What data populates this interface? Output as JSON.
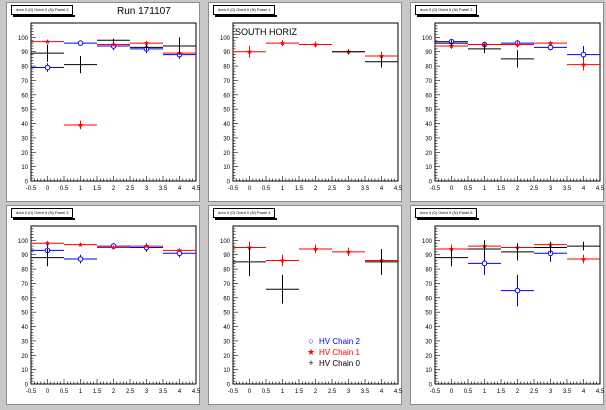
{
  "colors": {
    "hv_chain_2": "#0000ff",
    "hv_chain_1": "#ff0000",
    "hv_chain_0": "#000000",
    "canvas_bg": "#c8c8c8"
  },
  "run_label": "Run 171107",
  "annotation": "SOUTH HORIZ",
  "legend_panel_index": 4,
  "legend": [
    {
      "name": "HV Chain 2",
      "marker": "open-circle",
      "color": "#0000ff"
    },
    {
      "name": "HV Chain 1",
      "marker": "star",
      "color": "#ff0000"
    },
    {
      "name": "HV Chain 0",
      "marker": "cross",
      "color": "#000000"
    }
  ],
  "chart_data": [
    {
      "type": "scatter",
      "title": "dom 0 (0) Octnt 0 (N) Panel 0",
      "xlim": [
        -0.5,
        4.5
      ],
      "ylim": [
        0,
        110
      ],
      "xticks": [
        "-0.5",
        "0",
        "0.5",
        "1",
        "1.5",
        "2",
        "2.5",
        "3",
        "3.5",
        "4",
        "4.5"
      ],
      "yticks": [
        "0",
        "10",
        "20",
        "30",
        "40",
        "50",
        "60",
        "70",
        "80",
        "90",
        "100"
      ],
      "series": [
        {
          "name": "HV Chain 2",
          "x": [
            0,
            1,
            2,
            3,
            4
          ],
          "y": [
            79,
            96,
            94,
            92,
            88
          ],
          "xerr": 0.5,
          "yerr": [
            3,
            1,
            3,
            3,
            3
          ]
        },
        {
          "name": "HV Chain 1",
          "x": [
            0,
            1,
            2,
            3,
            4
          ],
          "y": [
            97,
            39,
            95,
            96,
            89
          ],
          "xerr": 0.5,
          "yerr": [
            1,
            3,
            1,
            1,
            1
          ]
        },
        {
          "name": "HV Chain 0",
          "x": [
            0,
            1,
            2,
            3,
            4
          ],
          "y": [
            89,
            81,
            98,
            93,
            94
          ],
          "xerr": 0.5,
          "yerr": [
            6,
            6,
            1,
            2,
            6
          ]
        }
      ]
    },
    {
      "type": "scatter",
      "title": "dom 0 (0) Octnt 0 (N) Panel 1",
      "xlim": [
        -0.5,
        4.5
      ],
      "ylim": [
        0,
        110
      ],
      "xticks": [
        "-0.5",
        "0",
        "0.5",
        "1",
        "1.5",
        "2",
        "2.5",
        "3",
        "3.5",
        "4",
        "4.5"
      ],
      "yticks": [
        "0",
        "10",
        "20",
        "30",
        "40",
        "50",
        "60",
        "70",
        "80",
        "90",
        "100"
      ],
      "series": [
        {
          "name": "HV Chain 1",
          "x": [
            0,
            1,
            2,
            3,
            4
          ],
          "y": [
            90,
            96,
            95,
            90,
            87
          ],
          "xerr": 0.5,
          "yerr": [
            4,
            2,
            2,
            2,
            3
          ]
        },
        {
          "name": "HV Chain 0",
          "x": [
            3,
            4
          ],
          "y": [
            90,
            83
          ],
          "xerr": 0.5,
          "yerr": [
            1,
            4
          ]
        }
      ]
    },
    {
      "type": "scatter",
      "title": "dom 0 (0) Octnt 0 (N) Panel 2",
      "xlim": [
        -0.5,
        4.5
      ],
      "ylim": [
        0,
        110
      ],
      "xticks": [
        "-0.5",
        "0",
        "0.5",
        "1",
        "1.5",
        "2",
        "2.5",
        "3",
        "3.5",
        "4",
        "4.5"
      ],
      "yticks": [
        "0",
        "10",
        "20",
        "30",
        "40",
        "50",
        "60",
        "70",
        "80",
        "90",
        "100"
      ],
      "series": [
        {
          "name": "HV Chain 2",
          "x": [
            0,
            1,
            2,
            3,
            4
          ],
          "y": [
            97,
            95,
            96,
            93,
            88
          ],
          "xerr": 0.5,
          "yerr": [
            1,
            2,
            2,
            2,
            6
          ]
        },
        {
          "name": "HV Chain 1",
          "x": [
            0,
            1,
            2,
            3,
            4
          ],
          "y": [
            94,
            95,
            95,
            96,
            81
          ],
          "xerr": 0.5,
          "yerr": [
            2,
            2,
            2,
            1,
            4
          ]
        },
        {
          "name": "HV Chain 0",
          "x": [
            0,
            1,
            2
          ],
          "y": [
            96,
            92,
            85
          ],
          "xerr": 0.5,
          "yerr": [
            2,
            3,
            6
          ]
        }
      ]
    },
    {
      "type": "scatter",
      "title": "dom 0 (0) Octnt 0 (N) Panel 3",
      "xlim": [
        -0.5,
        4.5
      ],
      "ylim": [
        0,
        110
      ],
      "xticks": [
        "-0.5",
        "0",
        "0.5",
        "1",
        "1.5",
        "2",
        "2.5",
        "3",
        "3.5",
        "4",
        "4.5"
      ],
      "yticks": [
        "0",
        "10",
        "20",
        "30",
        "40",
        "50",
        "60",
        "70",
        "80",
        "90",
        "100"
      ],
      "series": [
        {
          "name": "HV Chain 2",
          "x": [
            0,
            1,
            2,
            3,
            4
          ],
          "y": [
            93,
            87,
            96,
            95,
            91
          ],
          "xerr": 0.5,
          "yerr": [
            6,
            3,
            2,
            3,
            3
          ]
        },
        {
          "name": "HV Chain 1",
          "x": [
            0,
            1,
            2,
            3,
            4
          ],
          "y": [
            98,
            97,
            95,
            96,
            93
          ],
          "xerr": 0.5,
          "yerr": [
            1,
            1,
            1,
            1,
            1
          ]
        },
        {
          "name": "HV Chain 0",
          "x": [
            0
          ],
          "y": [
            88
          ],
          "xerr": 0.5,
          "yerr": [
            6
          ]
        }
      ]
    },
    {
      "type": "scatter",
      "title": "dom 0 (0) Octnt 0 (N) Panel 4",
      "xlim": [
        -0.5,
        4.5
      ],
      "ylim": [
        0,
        110
      ],
      "xticks": [
        "-0.5",
        "0",
        "0.5",
        "1",
        "1.5",
        "2",
        "2.5",
        "3",
        "3.5",
        "4",
        "4.5"
      ],
      "yticks": [
        "0",
        "10",
        "20",
        "30",
        "40",
        "50",
        "60",
        "70",
        "80",
        "90",
        "100"
      ],
      "series": [
        {
          "name": "HV Chain 1",
          "x": [
            0,
            1,
            2,
            3,
            4
          ],
          "y": [
            95,
            86,
            94,
            92,
            86
          ],
          "xerr": 0.5,
          "yerr": [
            4,
            4,
            3,
            3,
            3
          ]
        },
        {
          "name": "HV Chain 0",
          "x": [
            0,
            1,
            4
          ],
          "y": [
            85,
            66,
            85
          ],
          "xerr": 0.5,
          "yerr": [
            10,
            10,
            9
          ]
        }
      ]
    },
    {
      "type": "scatter",
      "title": "dom 0 (0) Octnt 0 (N) Panel 5",
      "xlim": [
        -0.5,
        4.5
      ],
      "ylim": [
        0,
        110
      ],
      "xticks": [
        "-0.5",
        "0",
        "0.5",
        "1",
        "1.5",
        "2",
        "2.5",
        "3",
        "3.5",
        "4",
        "4.5"
      ],
      "yticks": [
        "0",
        "10",
        "20",
        "30",
        "40",
        "50",
        "60",
        "70",
        "80",
        "90",
        "100"
      ],
      "series": [
        {
          "name": "HV Chain 2",
          "x": [
            1,
            2,
            3
          ],
          "y": [
            84,
            65,
            91
          ],
          "xerr": 0.5,
          "yerr": [
            8,
            11,
            6
          ]
        },
        {
          "name": "HV Chain 1",
          "x": [
            0,
            1,
            2,
            3,
            4
          ],
          "y": [
            94,
            96,
            95,
            97,
            87
          ],
          "xerr": 0.5,
          "yerr": [
            3,
            2,
            3,
            2,
            3
          ]
        },
        {
          "name": "HV Chain 0",
          "x": [
            0,
            1,
            2,
            3,
            4
          ],
          "y": [
            88,
            94,
            92,
            95,
            96
          ],
          "xerr": 0.5,
          "yerr": [
            6,
            6,
            6,
            4,
            3
          ]
        }
      ]
    }
  ]
}
